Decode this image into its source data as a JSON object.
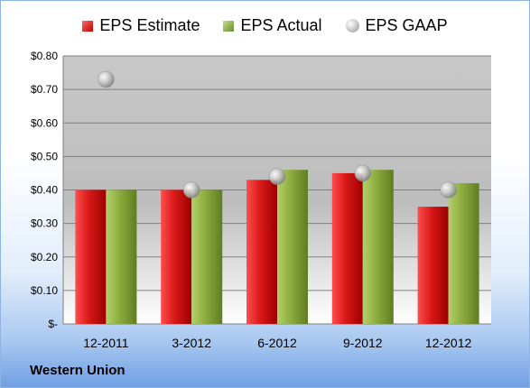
{
  "chart_data": {
    "type": "bar",
    "categories": [
      "12-2011",
      "3-2012",
      "6-2012",
      "9-2012",
      "12-2012"
    ],
    "series": [
      {
        "name": "EPS Estimate",
        "values": [
          0.4,
          0.4,
          0.43,
          0.45,
          0.35
        ],
        "kind": "bar",
        "color": "#c00000"
      },
      {
        "name": "EPS Actual",
        "values": [
          0.4,
          0.4,
          0.46,
          0.46,
          0.42
        ],
        "kind": "bar",
        "color": "#7a9a33"
      },
      {
        "name": "EPS GAAP",
        "values": [
          0.73,
          0.4,
          0.44,
          0.45,
          0.4
        ],
        "kind": "scatter",
        "color": "#a6a6a6"
      }
    ],
    "ylim": [
      0,
      0.8
    ],
    "yticks": [
      "$-",
      "$0.10",
      "$0.20",
      "$0.30",
      "$0.40",
      "$0.50",
      "$0.60",
      "$0.70",
      "$0.80"
    ],
    "grid": true,
    "legend_position": "top"
  },
  "footer": {
    "company": "Western Union"
  }
}
